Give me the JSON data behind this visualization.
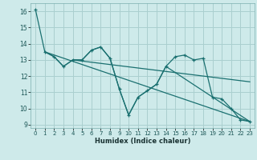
{
  "xlabel": "Humidex (Indice chaleur)",
  "bg_color": "#ceeaea",
  "grid_color": "#aacfcf",
  "line_color": "#1a7070",
  "ylim": [
    8.8,
    16.5
  ],
  "xlim": [
    -0.5,
    23.5
  ],
  "yticks": [
    9,
    10,
    11,
    12,
    13,
    14,
    15,
    16
  ],
  "xticks": [
    0,
    1,
    2,
    3,
    4,
    5,
    6,
    7,
    8,
    9,
    10,
    11,
    12,
    13,
    14,
    15,
    16,
    17,
    18,
    19,
    20,
    21,
    22,
    23
  ],
  "line1_x": [
    0,
    1,
    2,
    3,
    4,
    5,
    6,
    7,
    8,
    9,
    10,
    11,
    12,
    13,
    14,
    15,
    16,
    17,
    18,
    19,
    20,
    21,
    22,
    23
  ],
  "line1_y": [
    16.1,
    13.5,
    13.2,
    12.6,
    13.0,
    13.0,
    13.6,
    13.8,
    13.1,
    11.2,
    9.6,
    10.7,
    11.1,
    11.5,
    12.6,
    13.2,
    13.3,
    13.0,
    13.1,
    10.7,
    10.6,
    10.0,
    9.3,
    9.2
  ],
  "line2_x": [
    1,
    2,
    3,
    4,
    5,
    6,
    7,
    8,
    9,
    10,
    11,
    12,
    13,
    14,
    23
  ],
  "line2_y": [
    13.5,
    13.2,
    12.6,
    13.0,
    13.0,
    13.6,
    13.8,
    13.1,
    11.2,
    9.6,
    10.7,
    11.1,
    11.5,
    12.6,
    9.2
  ],
  "line3_x": [
    1,
    23
  ],
  "line3_y": [
    13.5,
    9.2
  ],
  "line4_x": [
    4,
    23
  ],
  "line4_y": [
    13.0,
    11.65
  ]
}
